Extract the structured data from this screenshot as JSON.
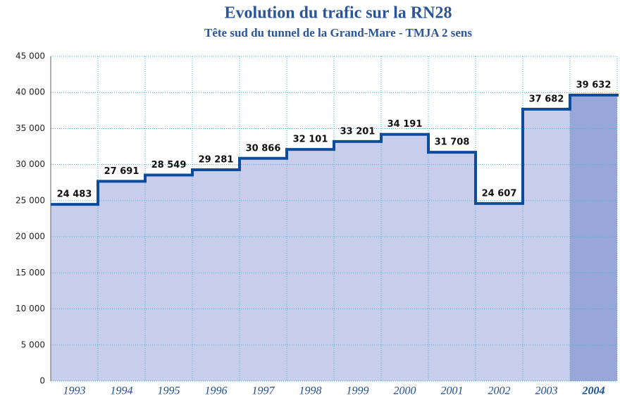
{
  "chart_data": {
    "type": "bar",
    "title": "Evolution du trafic sur la RN28",
    "subtitle": "Tête sud du tunnel de la Grand-Mare - TMJA 2 sens",
    "categories": [
      "1993",
      "1994",
      "1995",
      "1996",
      "1997",
      "1998",
      "1999",
      "2000",
      "2001",
      "2002",
      "2003",
      "2004"
    ],
    "values": [
      24483,
      27691,
      28549,
      29281,
      30866,
      32101,
      33201,
      34191,
      31708,
      24607,
      37682,
      39632
    ],
    "value_labels": [
      "24 483",
      "27 691",
      "28 549",
      "29 281",
      "30 866",
      "32 101",
      "33 201",
      "34 191",
      "31 708",
      "24 607",
      "37 682",
      "39 632"
    ],
    "colors": [
      "#c8cdec",
      "#c8cdec",
      "#c8cdec",
      "#c8cdec",
      "#c8cdec",
      "#c8cdec",
      "#c8cdec",
      "#c8cdec",
      "#c8cdec",
      "#c8cdec",
      "#c8cdec",
      "#98a6d8"
    ],
    "line_color": "#0d4c9c",
    "ylim": [
      0,
      45000
    ],
    "yticks": [
      0,
      {
        "value": 5000,
        "label": "5 000"
      },
      {
        "value": 10000,
        "label": "10 000"
      },
      {
        "value": 15000,
        "label": "15 000"
      },
      {
        "value": 20000,
        "label": "20 000"
      },
      {
        "value": 25000,
        "label": "25 000"
      },
      {
        "value": 30000,
        "label": "30 000"
      },
      {
        "value": 35000,
        "label": "35 000"
      },
      {
        "value": 40000,
        "label": "40 000"
      },
      {
        "value": 45000,
        "label": "45 000"
      }
    ],
    "grid": true
  }
}
